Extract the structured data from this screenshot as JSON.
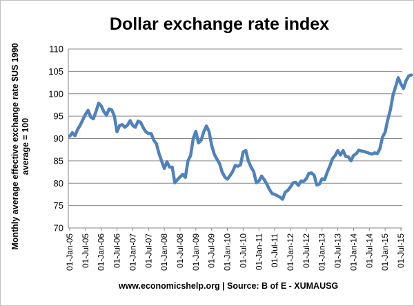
{
  "chart_data": {
    "type": "line",
    "title": "Dollar exchange rate index",
    "ylabel_line1": "Monthly average effective exchange rate $US 1990",
    "ylabel_line2": "average = 100",
    "source": "www.economicshelp.org | Source: B of E - XUMAUSG",
    "ylim": [
      70,
      110
    ],
    "yticks": [
      70,
      75,
      80,
      85,
      90,
      95,
      100,
      105,
      110
    ],
    "grid": true,
    "legend": "none",
    "xtick_labels": [
      "01-Jan-05",
      "01-Jul-05",
      "01-Jan-06",
      "01-Jul-06",
      "01-Jan-07",
      "01-Jul-07",
      "01-Jan-08",
      "01-Jul-08",
      "01-Jan-09",
      "01-Jul-09",
      "01-Jan-10",
      "01-Jul-10",
      "01-Jan-11",
      "01-Jul-11",
      "01-Jan-12",
      "01-Jul-12",
      "01-Jan-13",
      "01-Jul-13",
      "01-Jan-14",
      "01-Jul-14",
      "01-Jan-15",
      "01-Jul-15"
    ],
    "series": [
      {
        "color": "#4f81bd",
        "start": "2005-01",
        "values": [
          90.5,
          91.3,
          90.6,
          92.0,
          93.0,
          94.2,
          95.4,
          96.3,
          94.8,
          94.4,
          96.0,
          97.9,
          97.3,
          96.0,
          95.2,
          96.6,
          96.4,
          95.0,
          91.5,
          92.9,
          93.1,
          92.5,
          93.0,
          94.0,
          92.9,
          92.5,
          93.9,
          93.6,
          92.4,
          91.5,
          91.1,
          91.1,
          89.6,
          88.8,
          86.6,
          84.9,
          83.3,
          84.8,
          83.6,
          83.6,
          80.1,
          80.8,
          81.4,
          82.0,
          81.3,
          85.0,
          86.2,
          90.0,
          91.6,
          89.0,
          89.6,
          91.5,
          92.8,
          91.6,
          88.5,
          86.5,
          85.4,
          84.4,
          82.5,
          81.4,
          80.9,
          81.7,
          82.6,
          84.0,
          83.8,
          84.1,
          87.0,
          87.3,
          84.9,
          83.6,
          82.6,
          80.1,
          80.5,
          81.6,
          80.8,
          79.8,
          78.6,
          77.7,
          77.5,
          77.2,
          76.9,
          76.4,
          78.0,
          78.4,
          79.2,
          80.1,
          80.2,
          79.5,
          80.5,
          80.4,
          81.0,
          82.2,
          82.3,
          81.8,
          79.6,
          79.8,
          81.0,
          80.8,
          82.5,
          83.9,
          85.5,
          86.2,
          87.3,
          86.3,
          87.3,
          86.0,
          85.9,
          85.0,
          86.2,
          86.6,
          87.4,
          87.2,
          87.1,
          86.9,
          86.7,
          86.5,
          86.8,
          86.6,
          87.7,
          90.3,
          91.4,
          94.2,
          96.4,
          99.7,
          101.6,
          103.6,
          102.2,
          101.2,
          103.0,
          104.0,
          104.2
        ]
      }
    ]
  }
}
